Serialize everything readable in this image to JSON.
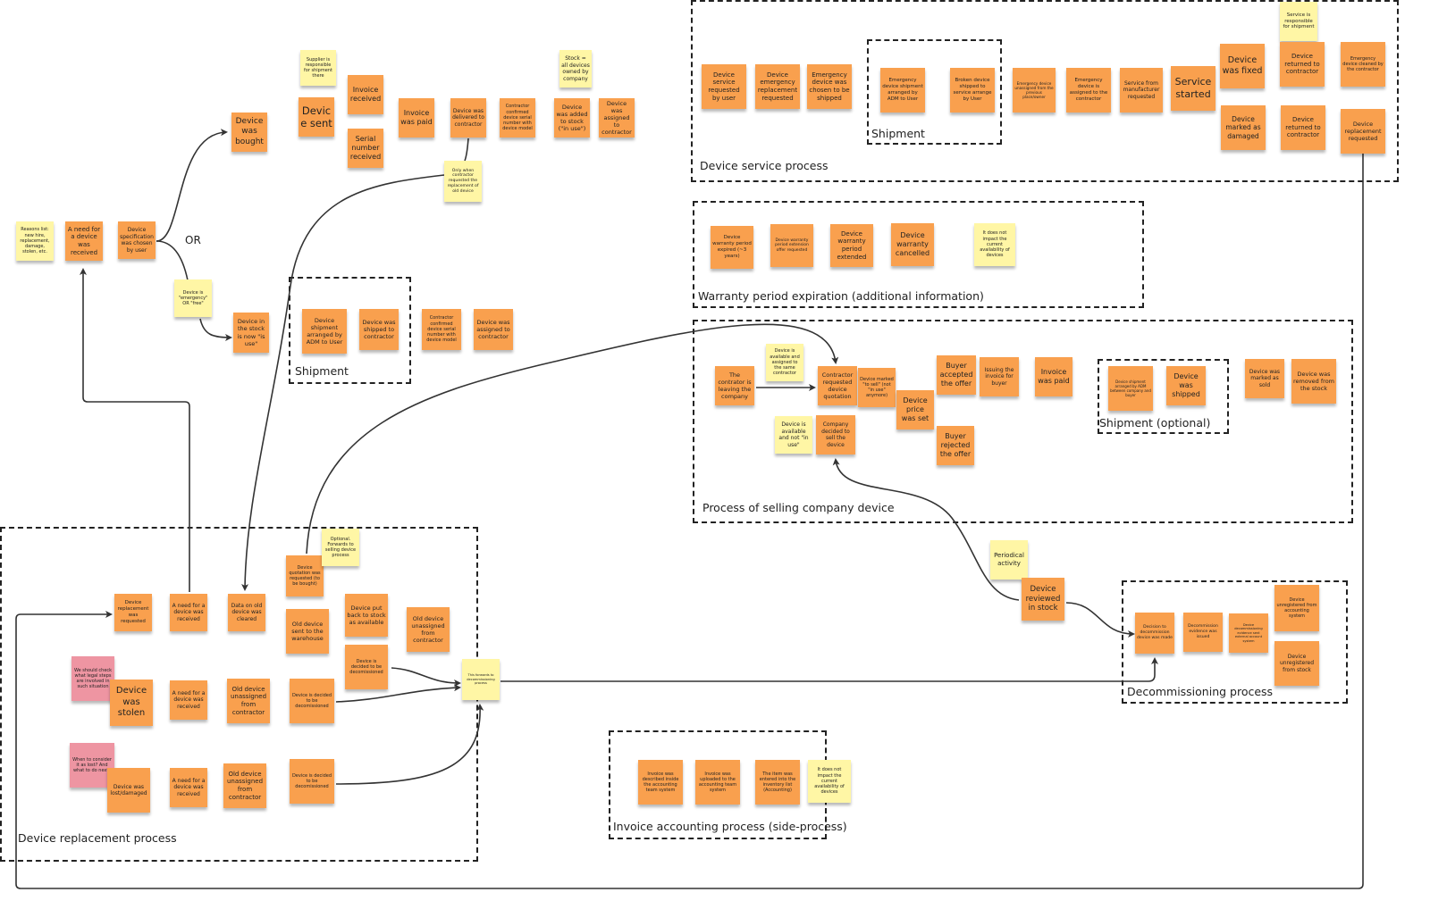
{
  "colors": {
    "orange": "#f9a04e",
    "yellow": "#fff6a5",
    "pink": "#ee95a2"
  },
  "or_label": "OR",
  "groups": [
    {
      "label": "Shipment"
    },
    {
      "label": "Device service process"
    },
    {
      "label": "Shipment"
    },
    {
      "label": "Warranty period expiration (additional information)"
    },
    {
      "label": "Process of selling company device"
    },
    {
      "label": "Shipment (optional)"
    },
    {
      "label": "Decommissioning process"
    },
    {
      "label": "Invoice accounting process (side-process)"
    },
    {
      "label": "Device replacement process"
    }
  ],
  "notes": [
    {
      "text": "Reasons list: new hire, replacement, damage, stolen, etc.",
      "color": "yellow"
    },
    {
      "text": "A need for a device was received",
      "color": "orange"
    },
    {
      "text": "Device specification was chosen by user",
      "color": "orange"
    },
    {
      "text": "Device was bought",
      "color": "orange"
    },
    {
      "text": "Device is \"emergency\" OR \"free\"",
      "color": "yellow"
    },
    {
      "text": "Device in the stock is now \"is use\"",
      "color": "orange"
    },
    {
      "text": "Supplier is responsible for shipment there",
      "color": "yellow"
    },
    {
      "text": "Device sent",
      "color": "orange"
    },
    {
      "text": "Invoice received",
      "color": "orange"
    },
    {
      "text": "Serial number received",
      "color": "orange"
    },
    {
      "text": "Invoice was paid",
      "color": "orange"
    },
    {
      "text": "Device was delivered to contractor",
      "color": "orange"
    },
    {
      "text": "Contractor confirmed device serial number with device model",
      "color": "orange"
    },
    {
      "text": "Stock = all devices owned by company",
      "color": "yellow"
    },
    {
      "text": "Device was added to stock (\"in use\")",
      "color": "orange"
    },
    {
      "text": "Device was assigned to contractor",
      "color": "orange"
    },
    {
      "text": "Only when contractor requested the replacement of old device",
      "color": "yellow"
    },
    {
      "text": "Device shipment arranged by ADM to User",
      "color": "orange"
    },
    {
      "text": "Device was shipped to contractor",
      "color": "orange"
    },
    {
      "text": "Contractor confirmed device serial number with device model",
      "color": "orange"
    },
    {
      "text": "Device was assigned to contractor",
      "color": "orange"
    },
    {
      "text": "Device service requested by user",
      "color": "orange"
    },
    {
      "text": "Device emergency replacement requested",
      "color": "orange"
    },
    {
      "text": "Emergency device was chosen to be shipped",
      "color": "orange"
    },
    {
      "text": "Emergency device shipment arranged by ADM to User",
      "color": "orange"
    },
    {
      "text": "Broken device shipped to service arrange by User",
      "color": "orange"
    },
    {
      "text": "Emergency device unassigned from the previous place/owner",
      "color": "orange"
    },
    {
      "text": "Emergency device is assigned to the contractor",
      "color": "orange"
    },
    {
      "text": "Service from manufacturer requested",
      "color": "orange"
    },
    {
      "text": "Service started",
      "color": "orange"
    },
    {
      "text": "Device was fixed",
      "color": "orange"
    },
    {
      "text": "Device marked as damaged",
      "color": "orange"
    },
    {
      "text": "Service is responsible for shipment",
      "color": "yellow"
    },
    {
      "text": "Device returned to contractor",
      "color": "orange"
    },
    {
      "text": "Device returned to contractor",
      "color": "orange"
    },
    {
      "text": "Emergency device cleaned by the contractor",
      "color": "orange"
    },
    {
      "text": "Device replacement requested",
      "color": "orange"
    },
    {
      "text": "Device warranty period expired (~3 years)",
      "color": "orange"
    },
    {
      "text": "Device warranty period extension offer requested",
      "color": "orange"
    },
    {
      "text": "Device warranty period extended",
      "color": "orange"
    },
    {
      "text": "Device warranty cancelled",
      "color": "orange"
    },
    {
      "text": "It does not impact the current availability of devices",
      "color": "yellow"
    },
    {
      "text": "The contrator is leaving the company",
      "color": "orange"
    },
    {
      "text": "Device is available and assigned to the same contractor",
      "color": "yellow"
    },
    {
      "text": "Contractor requested device quotation",
      "color": "orange"
    },
    {
      "text": "Device marked \"to sell\" (not \"in use\" anymore)",
      "color": "orange"
    },
    {
      "text": "Device price was set",
      "color": "orange"
    },
    {
      "text": "Buyer accepted the offer",
      "color": "orange"
    },
    {
      "text": "Issuing the invoice for buyer",
      "color": "orange"
    },
    {
      "text": "Buyer rejected the offer",
      "color": "orange"
    },
    {
      "text": "Invoice was paid",
      "color": "orange"
    },
    {
      "text": "Device is available and not \"in use\"",
      "color": "yellow"
    },
    {
      "text": "Company decided to sell the device",
      "color": "orange"
    },
    {
      "text": "Device shipment arranged by ADM between company and buyer",
      "color": "orange"
    },
    {
      "text": "Device was shipped",
      "color": "orange"
    },
    {
      "text": "Device was marked as sold",
      "color": "orange"
    },
    {
      "text": "Device was removed from the stock",
      "color": "orange"
    },
    {
      "text": "Periodical activity",
      "color": "yellow"
    },
    {
      "text": "Device reviewed in stock",
      "color": "orange"
    },
    {
      "text": "Decision to decommission device was made",
      "color": "orange"
    },
    {
      "text": "Decommission evidence was issued",
      "color": "orange"
    },
    {
      "text": "Device decommissioning evidence sent external account system",
      "color": "orange"
    },
    {
      "text": "Device unregistered from accounting system",
      "color": "orange"
    },
    {
      "text": "Device unregistered from stock",
      "color": "orange"
    },
    {
      "text": "Invoice was described inside the accounting team system",
      "color": "orange"
    },
    {
      "text": "Invoice was uploaded to the accounting team system",
      "color": "orange"
    },
    {
      "text": "The item was entered into the inventory list (Accounting)",
      "color": "orange"
    },
    {
      "text": "It does not impact the current availability of devices",
      "color": "yellow"
    },
    {
      "text": "Device replacement was requested",
      "color": "orange"
    },
    {
      "text": "A need for a device was received",
      "color": "orange"
    },
    {
      "text": "Data on old device was cleared",
      "color": "orange"
    },
    {
      "text": "Device quotation was requested (to be bought)",
      "color": "orange"
    },
    {
      "text": "Optional. Forwards to selling device process",
      "color": "yellow"
    },
    {
      "text": "Old device sent to the warehouse",
      "color": "orange"
    },
    {
      "text": "Device put back to stock as available",
      "color": "orange"
    },
    {
      "text": "Old device unassigned from contractor",
      "color": "orange"
    },
    {
      "text": "Device is decided to be decomissioned",
      "color": "orange"
    },
    {
      "text": "This forwards to decommissioning process",
      "color": "yellow"
    },
    {
      "text": "We should check what legal steps are involved in such situation",
      "color": "pink"
    },
    {
      "text": "Device was stolen",
      "color": "orange"
    },
    {
      "text": "A need for a device was received",
      "color": "orange"
    },
    {
      "text": "Old device unassigned from contractor",
      "color": "orange"
    },
    {
      "text": "Device is decided to be decomissioned",
      "color": "orange"
    },
    {
      "text": "When to consider it as lost? And what to do next?",
      "color": "pink"
    },
    {
      "text": "Device was lost/damaged",
      "color": "orange"
    },
    {
      "text": "A need for a device was received",
      "color": "orange"
    },
    {
      "text": "Old device unassigned from contractor",
      "color": "orange"
    },
    {
      "text": "Device is decided to be decomissioned",
      "color": "orange"
    }
  ]
}
